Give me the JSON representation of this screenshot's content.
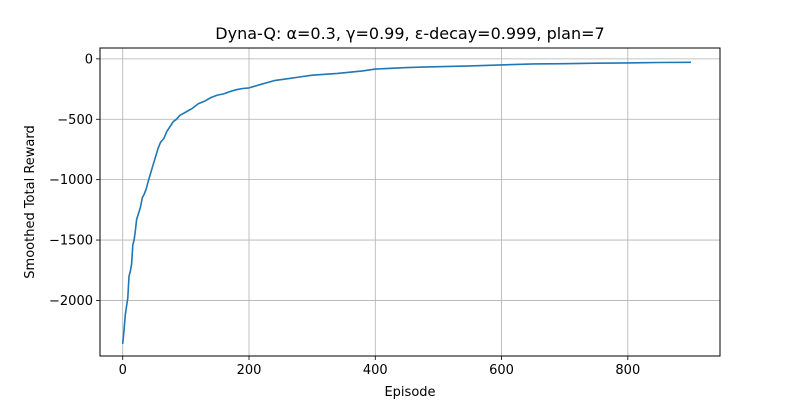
{
  "chart_data": {
    "type": "line",
    "title": "Dyna-Q: α=0.3, γ=0.99, ε-decay=0.999, plan=7",
    "xlabel": "Episode",
    "ylabel": "Smoothed Total Reward",
    "xlim": [
      -36,
      946
    ],
    "ylim": [
      -2460,
      90
    ],
    "xticks": [
      0,
      200,
      400,
      600,
      800
    ],
    "xtick_labels": [
      "0",
      "200",
      "400",
      "600",
      "800"
    ],
    "yticks": [
      0,
      -500,
      -1000,
      -1500,
      -2000
    ],
    "ytick_labels": [
      "0",
      "−500",
      "−1000",
      "−1500",
      "−2000"
    ],
    "grid": true,
    "line_color": "#1f77b4",
    "series": [
      {
        "x": [
          0,
          2,
          4,
          6,
          8,
          10,
          12,
          14,
          16,
          18,
          20,
          22,
          25,
          28,
          31,
          34,
          37,
          40,
          44,
          48,
          52,
          56,
          60,
          65,
          70,
          75,
          80,
          85,
          90,
          95,
          100,
          110,
          120,
          130,
          140,
          150,
          160,
          170,
          180,
          190,
          200,
          220,
          240,
          260,
          280,
          300,
          320,
          340,
          360,
          380,
          400,
          425,
          450,
          475,
          500,
          550,
          600,
          650,
          700,
          750,
          800,
          850,
          900
        ],
        "values": [
          -2360,
          -2250,
          -2120,
          -2050,
          -1980,
          -1800,
          -1760,
          -1700,
          -1540,
          -1500,
          -1420,
          -1330,
          -1280,
          -1230,
          -1150,
          -1120,
          -1080,
          -1020,
          -950,
          -880,
          -810,
          -740,
          -690,
          -660,
          -600,
          -560,
          -520,
          -500,
          -470,
          -455,
          -440,
          -410,
          -370,
          -350,
          -320,
          -300,
          -290,
          -270,
          -255,
          -245,
          -240,
          -210,
          -180,
          -165,
          -150,
          -135,
          -128,
          -120,
          -110,
          -100,
          -85,
          -78,
          -72,
          -68,
          -65,
          -58,
          -50,
          -42,
          -40,
          -36,
          -33,
          -30,
          -28
        ]
      }
    ]
  }
}
